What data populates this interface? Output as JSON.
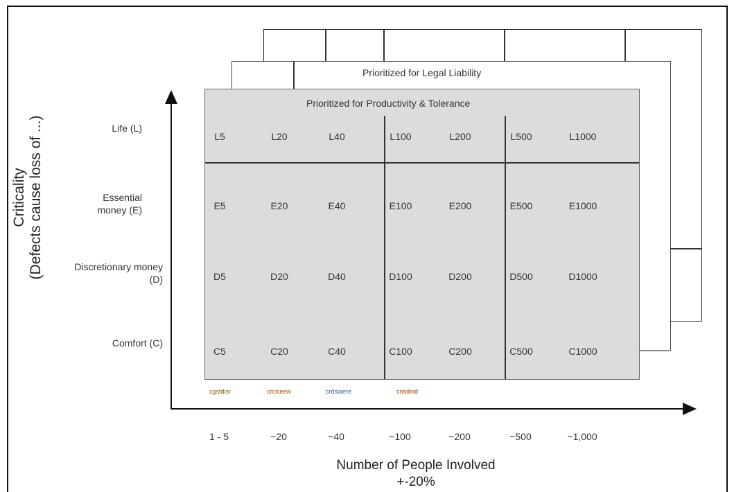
{
  "layers": {
    "back_title": "",
    "mid_title": "Prioritized for Legal Liability",
    "front_title": "Prioritized for Productivity & Tolerance"
  },
  "rows": [
    {
      "label": "Life (L)",
      "cells": [
        "L5",
        "L20",
        "L40",
        "L100",
        "L200",
        "L500",
        "L1000"
      ]
    },
    {
      "label": "Essential money (E)",
      "cells": [
        "E5",
        "E20",
        "E40",
        "E100",
        "E200",
        "E500",
        "E1000"
      ]
    },
    {
      "label": "Discretionary money (D)",
      "cells": [
        "D5",
        "D20",
        "D40",
        "D100",
        "D200",
        "D500",
        "D1000"
      ]
    },
    {
      "label": "Comfort (C)",
      "cells": [
        "C5",
        "C20",
        "C40",
        "C100",
        "C200",
        "C500",
        "C1000"
      ]
    }
  ],
  "x_ticks": [
    "1 - 5",
    "~20",
    "~40",
    "~100",
    "~200",
    "~500",
    "~1,000"
  ],
  "tags": [
    "cgstdisr",
    "crcsleew",
    "crdsiaere",
    "cnsdind"
  ],
  "y_axis_label": [
    "Criticality",
    "(Defects cause loss of ...)"
  ],
  "x_axis_label": [
    "Number of People Involved",
    "+-20%"
  ],
  "colors": {
    "front_fill": "#dcdcdc",
    "line": "#333333"
  }
}
